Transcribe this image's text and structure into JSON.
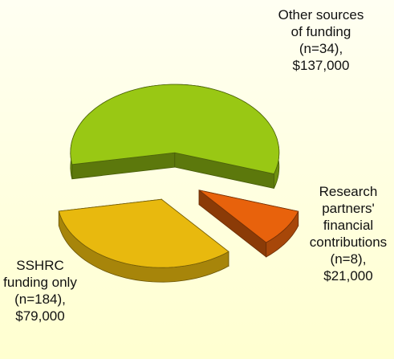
{
  "chart_data": {
    "type": "pie",
    "categories": [
      "Other sources of funding (n=34),",
      "Research partners' financial contributions (n=8),",
      "SSHRC funding only (n=184),"
    ],
    "values": [
      137000,
      21000,
      79000
    ],
    "value_labels": [
      "$137,000",
      "$21,000",
      "$79,000"
    ],
    "colors": [
      "#99c814",
      "#e8620c",
      "#e8b90e"
    ]
  }
}
